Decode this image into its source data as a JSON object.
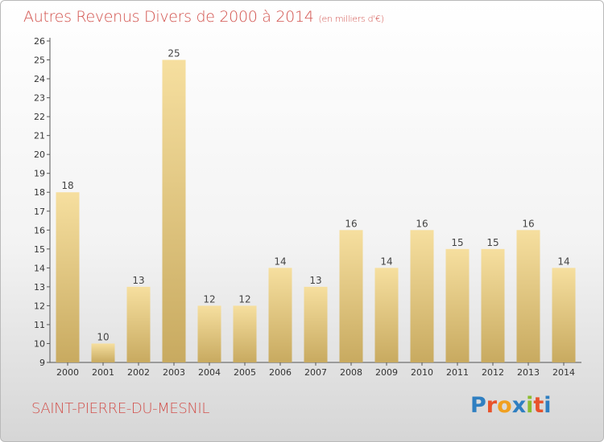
{
  "title": "Autres Revenus Divers de 2000 à 2014",
  "unit": "(en milliers d'€)",
  "location": "SAINT-PIERRE-DU-MESNIL",
  "logo": {
    "letters": [
      "P",
      "r",
      "o",
      "x",
      "i",
      "t",
      "i"
    ],
    "colors": [
      "#2f7fc1",
      "#e8532b",
      "#f0a020",
      "#2f7fc1",
      "#8bbd2f",
      "#e8532b",
      "#2f7fc1"
    ]
  },
  "colors": {
    "title": "#d2524d",
    "bar_light": "#f6df9f",
    "bar_dark": "#c8aa60",
    "axis": "#555555"
  },
  "chart_data": {
    "type": "bar",
    "categories": [
      "2000",
      "2001",
      "2002",
      "2003",
      "2004",
      "2005",
      "2006",
      "2007",
      "2008",
      "2009",
      "2010",
      "2011",
      "2012",
      "2013",
      "2014"
    ],
    "values": [
      18,
      10,
      13,
      25,
      12,
      12,
      14,
      13,
      16,
      14,
      16,
      15,
      15,
      16,
      14
    ],
    "ylim": [
      9,
      26
    ],
    "yticks": [
      9,
      10,
      11,
      12,
      13,
      14,
      15,
      16,
      17,
      18,
      19,
      20,
      21,
      22,
      23,
      24,
      25,
      26
    ],
    "grid": false,
    "data_labels": true
  }
}
